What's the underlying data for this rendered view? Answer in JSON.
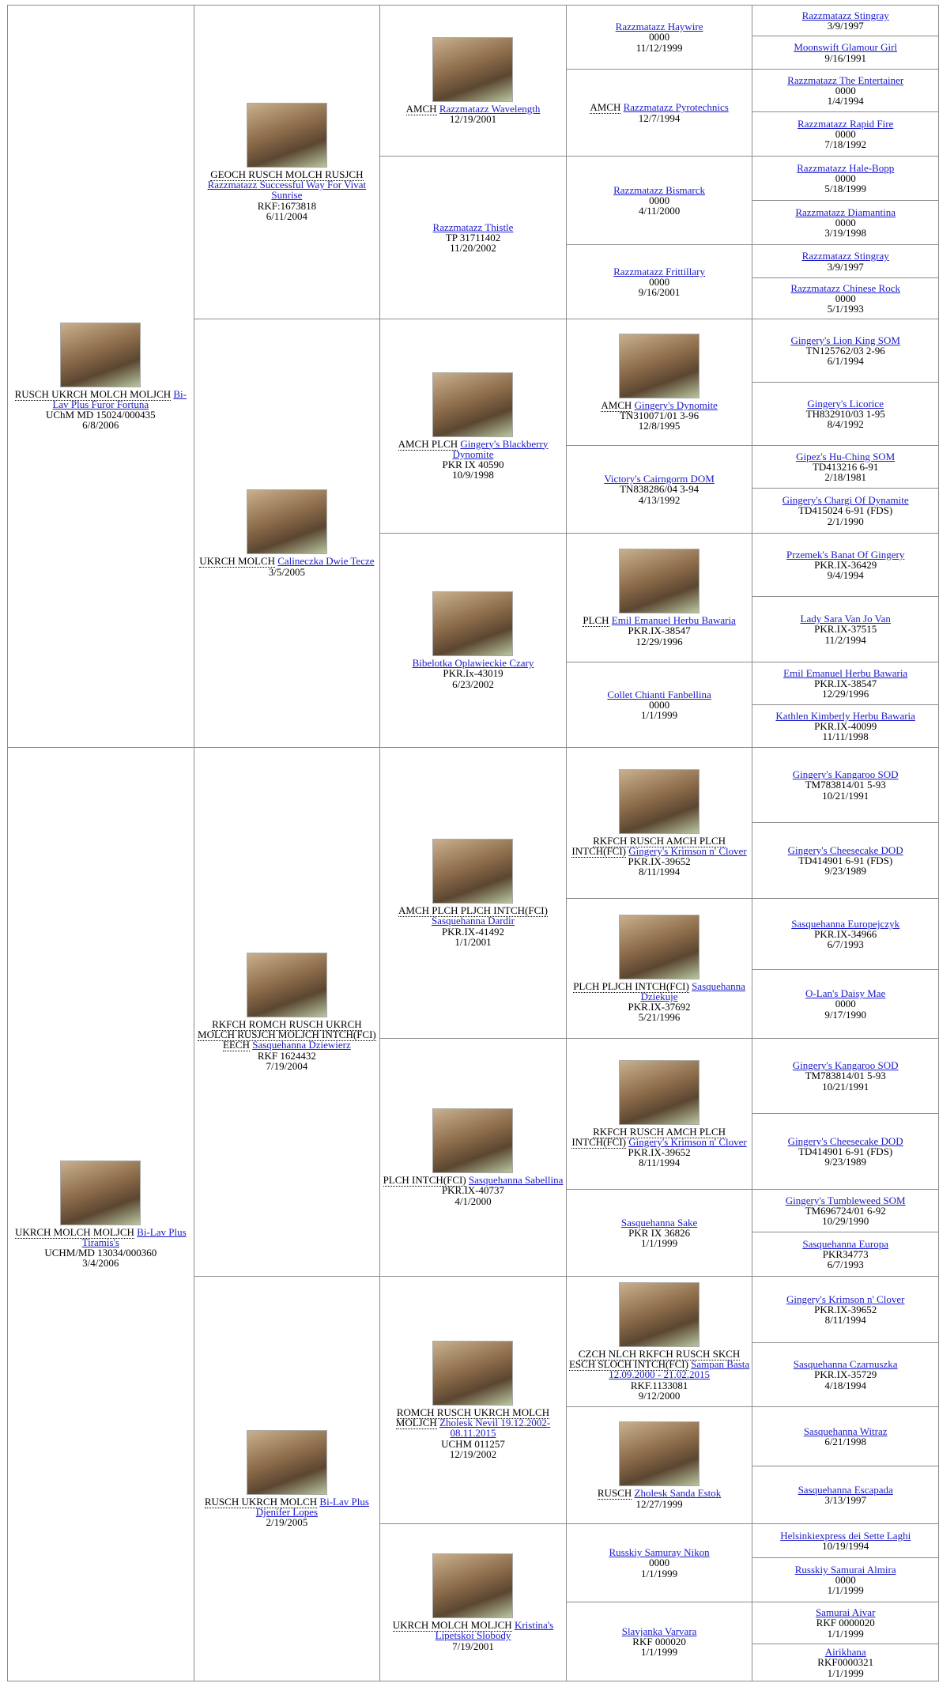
{
  "pedigree": {
    "generations": [
      [
        {
          "titles": "RUSCH UKRCH MOLCH MOLJCH",
          "name": "Bi-Lav Plus Furor Fortuna",
          "reg": "UChM MD 15024/000435",
          "date": "6/8/2006",
          "photo": true
        },
        {
          "titles": "UKRCH MOLCH MOLJCH",
          "name": "Bi-Lav Plus Tiramis's",
          "reg": "UCHM/MD 13034/000360",
          "date": "3/4/2006",
          "photo": true
        }
      ],
      [
        {
          "titles": "GEOCH RUSCH MOLCH RUSJCH",
          "name": "Razzmatazz Successful Way For Vivat Sunrise",
          "reg": "RKF:1673818",
          "date": "6/11/2004",
          "photo": true
        },
        {
          "titles": "UKRCH MOLCH",
          "name": "Calineczka Dwie Tecze",
          "date": "3/5/2005",
          "photo": true
        },
        {
          "titles": "RKFCH ROMCH RUSCH UKRCH MOLCH RUSJCH MOLJCH INTCH(FCI) EECH",
          "name": "Sasquehanna Dziewierz",
          "reg": "RKF 1624432",
          "date": "7/19/2004",
          "photo": true
        },
        {
          "titles": "RUSCH UKRCH MOLCH",
          "name": "Bi-Lav Plus Djenifer Lopes",
          "date": "2/19/2005",
          "photo": true
        }
      ],
      [
        {
          "titles": "AMCH",
          "name": "Razzmatazz Wavelength",
          "date": "12/19/2001",
          "photo": true
        },
        {
          "name": "Razzmatazz Thistle",
          "reg": "TP 31711402",
          "date": "11/20/2002"
        },
        {
          "titles": "AMCH PLCH",
          "name": "Gingery's Blackberry Dynomite",
          "reg": "PKR IX 40590",
          "date": "10/9/1998",
          "photo": true
        },
        {
          "name": "Bibelotka Oplawieckie Czary",
          "reg": "PKR.Ix-43019",
          "date": "6/23/2002",
          "photo": true
        },
        {
          "titles": "AMCH PLCH PLJCH INTCH(FCI)",
          "name": "Sasquehanna Dardir",
          "reg": "PKR.IX-41492",
          "date": "1/1/2001",
          "photo": true
        },
        {
          "titles": "PLCH INTCH(FCI)",
          "name": "Sasquehanna Sabellina",
          "reg": "PKR.IX-40737",
          "date": "4/1/2000",
          "photo": true
        },
        {
          "titles": "ROMCH RUSCH UKRCH MOLCH MOLJCH",
          "name": "Zholesk Nevil 19.12.2002-08.11.2015",
          "reg": "UCHM 011257",
          "date": "12/19/2002",
          "photo": true
        },
        {
          "titles": "UKRCH MOLCH MOLJCH",
          "name": "Kristina's Lipetskoi Slobody",
          "date": "7/19/2001",
          "photo": true
        }
      ],
      [
        {
          "name": "Razzmatazz Haywire",
          "reg": "0000",
          "date": "11/12/1999"
        },
        {
          "titles": "AMCH",
          "name": "Razzmatazz Pyrotechnics",
          "date": "12/7/1994"
        },
        {
          "name": "Razzmatazz Bismarck",
          "reg": "0000",
          "date": "4/11/2000"
        },
        {
          "name": "Razzmatazz Frittillary",
          "reg": "0000",
          "date": "9/16/2001"
        },
        {
          "titles": "AMCH",
          "name": "Gingery's Dynomite",
          "reg": "TN310071/01 3-96",
          "date": "12/8/1995",
          "photo": true
        },
        {
          "name": "Victory's Cairngorm DOM",
          "reg": "TN838286/04 3-94",
          "date": "4/13/1992"
        },
        {
          "titles": "PLCH",
          "name": "Emil Emanuel Herbu Bawaria",
          "reg": "PKR.IX-38547",
          "date": "12/29/1996",
          "photo": true
        },
        {
          "name": "Collet Chianti Fanbellina",
          "reg": "0000",
          "date": "1/1/1999"
        },
        {
          "titles": "RKFCH RUSCH AMCH PLCH INTCH(FCI)",
          "name": "Gingery's Krimson n' Clover",
          "reg": "PKR.IX-39652",
          "date": "8/11/1994",
          "photo": true
        },
        {
          "titles": "PLCH PLJCH INTCH(FCI)",
          "name": "Sasquehanna Dziekuje",
          "reg": "PKR.IX-37692",
          "date": "5/21/1996",
          "photo": true
        },
        {
          "titles": "RKFCH RUSCH AMCH PLCH INTCH(FCI)",
          "name": "Gingery's Krimson n' Clover",
          "reg": "PKR.IX-39652",
          "date": "8/11/1994",
          "photo": true
        },
        {
          "name": "Sasquehanna Sake",
          "reg": "PKR IX 36826",
          "date": "1/1/1999"
        },
        {
          "titles": "CZCH NLCH RKFCH RUSCH SKCH ESCH SLOCH INTCH(FCI)",
          "name": "Sampan Basta 12.09.2000 - 21.02.2015",
          "reg": "RKF.1133081",
          "date": "9/12/2000",
          "photo": true
        },
        {
          "titles": "RUSCH",
          "name": "Zholesk Sanda Estok",
          "date": "12/27/1999",
          "photo": true
        },
        {
          "name": "Russkiy Samuray Nikon",
          "reg": "0000",
          "date": "1/1/1999"
        },
        {
          "name": "Slavjanka Varvara",
          "reg": "RKF 000020",
          "date": "1/1/1999"
        }
      ],
      [
        {
          "name": "Razzmatazz Stingray",
          "date": "3/9/1997"
        },
        {
          "name": "Moonswift Glamour Girl",
          "date": "9/16/1991"
        },
        {
          "name": "Razzmatazz The Entertainer",
          "reg": "0000",
          "date": "1/4/1994"
        },
        {
          "name": "Razzmatazz Rapid Fire",
          "reg": "0000",
          "date": "7/18/1992"
        },
        {
          "name": "Razzmatazz Hale-Bopp",
          "reg": "0000",
          "date": "5/18/1999"
        },
        {
          "name": "Razzmatazz Diamantina",
          "reg": "0000",
          "date": "3/19/1998"
        },
        {
          "name": "Razzmatazz Stingray",
          "date": "3/9/1997"
        },
        {
          "name": "Razzmatazz Chinese Rock",
          "reg": "0000",
          "date": "5/1/1993"
        },
        {
          "name": "Gingery's Lion King SOM",
          "reg": "TN125762/03 2-96",
          "date": "6/1/1994"
        },
        {
          "name": "Gingery's Licorice",
          "reg": "TH832910/03 1-95",
          "date": "8/4/1992"
        },
        {
          "name": "Gipez's Hu-Ching SOM",
          "reg": "TD413216 6-91",
          "date": "2/18/1981"
        },
        {
          "name": "Gingery's Chargi Of Dynamite",
          "reg": "TD415024 6-91 (FDS)",
          "date": "2/1/1990"
        },
        {
          "name": "Przemek's Banat Of Gingery",
          "reg": "PKR.IX-36429",
          "date": "9/4/1994"
        },
        {
          "name": "Lady Sara Van Jo Van",
          "reg": "PKR.IX-37515",
          "date": "11/2/1994"
        },
        {
          "name": "Emil Emanuel Herbu Bawaria",
          "reg": "PKR.IX-38547",
          "date": "12/29/1996"
        },
        {
          "name": "Kathlen Kimberly Herbu Bawaria",
          "reg": "PKR.IX-40099",
          "date": "11/11/1998"
        },
        {
          "name": "Gingery's Kangaroo SOD",
          "reg": "TM783814/01 5-93",
          "date": "10/21/1991"
        },
        {
          "name": "Gingery's Cheesecake DOD",
          "reg": "TD414901 6-91 (FDS)",
          "date": "9/23/1989"
        },
        {
          "name": "Sasquehanna Europejczyk",
          "reg": "PKR.IX-34966",
          "date": "6/7/1993"
        },
        {
          "name": "O-Lan's Daisy Mae",
          "reg": "0000",
          "date": "9/17/1990"
        },
        {
          "name": "Gingery's Kangaroo SOD",
          "reg": "TM783814/01 5-93",
          "date": "10/21/1991"
        },
        {
          "name": "Gingery's Cheesecake DOD",
          "reg": "TD414901 6-91 (FDS)",
          "date": "9/23/1989"
        },
        {
          "name": "Gingery's Tumbleweed SOM",
          "reg": "TM696724/01 6-92",
          "date": "10/29/1990"
        },
        {
          "name": "Sasquehanna Europa",
          "reg": "PKR34773",
          "date": "6/7/1993"
        },
        {
          "name": "Gingery's Krimson n' Clover",
          "reg": "PKR.IX-39652",
          "date": "8/11/1994"
        },
        {
          "name": "Sasquehanna Czarnuszka",
          "reg": "PKR.IX-35729",
          "date": "4/18/1994"
        },
        {
          "name": "Sasquehanna Witraz",
          "date": "6/21/1998"
        },
        {
          "name": "Sasquehanna Escapada",
          "date": "3/13/1997"
        },
        {
          "name": "Helsinkiexpress dei Sette Laghi",
          "date": "10/19/1994"
        },
        {
          "name": "Russkiy Samurai Almira",
          "reg": "0000",
          "date": "1/1/1999"
        },
        {
          "name": "Samurai Aivar",
          "reg": "RKF 0000020",
          "date": "1/1/1999"
        },
        {
          "name": "Airikhana",
          "reg": "RKF0000321",
          "date": "1/1/1999"
        }
      ]
    ]
  }
}
